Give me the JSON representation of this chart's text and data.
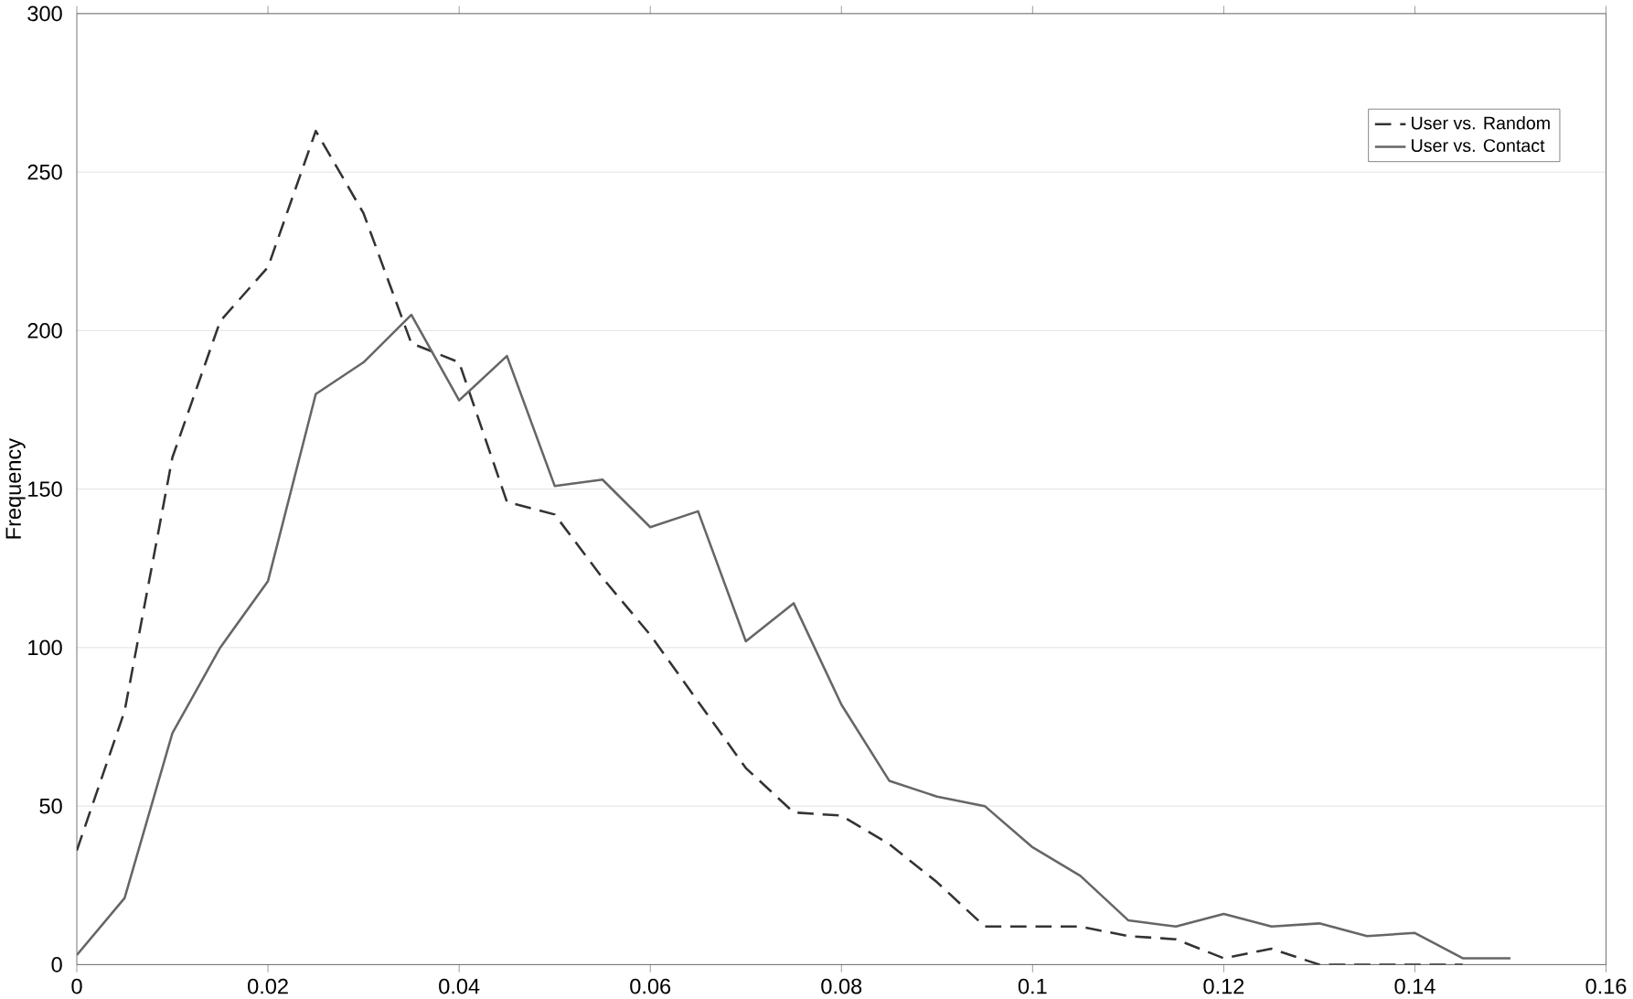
{
  "chart_data": {
    "type": "line",
    "ylabel": "Frequency",
    "xlim": [
      0,
      0.16
    ],
    "xticks": [
      0,
      0.02,
      0.04,
      0.06,
      0.08,
      0.1,
      0.12,
      0.14,
      0.16
    ],
    "ylim": [
      0,
      300
    ],
    "yticks": [
      0,
      50,
      100,
      150,
      200,
      250,
      300
    ],
    "grid": "y",
    "legend": "top right",
    "marker": "none",
    "series": [
      {
        "name": "User vs. Random",
        "color": "#333333",
        "line_style": "dashed",
        "x": [
          0,
          0.005,
          0.01,
          0.015,
          0.02,
          0.025,
          0.03,
          0.035,
          0.04,
          0.045,
          0.05,
          0.055,
          0.06,
          0.065,
          0.07,
          0.075,
          0.08,
          0.085,
          0.09,
          0.095,
          0.1,
          0.105,
          0.11,
          0.115,
          0.12,
          0.125,
          0.13,
          0.135,
          0.14,
          0.145
        ],
        "values": [
          36,
          80,
          160,
          203,
          220,
          263,
          237,
          196,
          190,
          146,
          142,
          122,
          104,
          83,
          62,
          48,
          47,
          38,
          26,
          12,
          12,
          12,
          9,
          8,
          2,
          5,
          0,
          0,
          0,
          0
        ]
      },
      {
        "name": "User vs. Contact",
        "color": "#666666",
        "line_style": "solid",
        "x": [
          0,
          0.005,
          0.01,
          0.015,
          0.02,
          0.025,
          0.03,
          0.035,
          0.04,
          0.045,
          0.05,
          0.055,
          0.06,
          0.065,
          0.07,
          0.075,
          0.08,
          0.085,
          0.09,
          0.095,
          0.1,
          0.105,
          0.11,
          0.115,
          0.12,
          0.125,
          0.13,
          0.135,
          0.14,
          0.145,
          0.15
        ],
        "values": [
          3,
          21,
          73,
          100,
          121,
          180,
          190,
          205,
          178,
          192,
          151,
          153,
          138,
          143,
          102,
          114,
          82,
          58,
          53,
          50,
          37,
          28,
          14,
          12,
          16,
          12,
          13,
          9,
          10,
          2,
          2
        ]
      }
    ]
  }
}
